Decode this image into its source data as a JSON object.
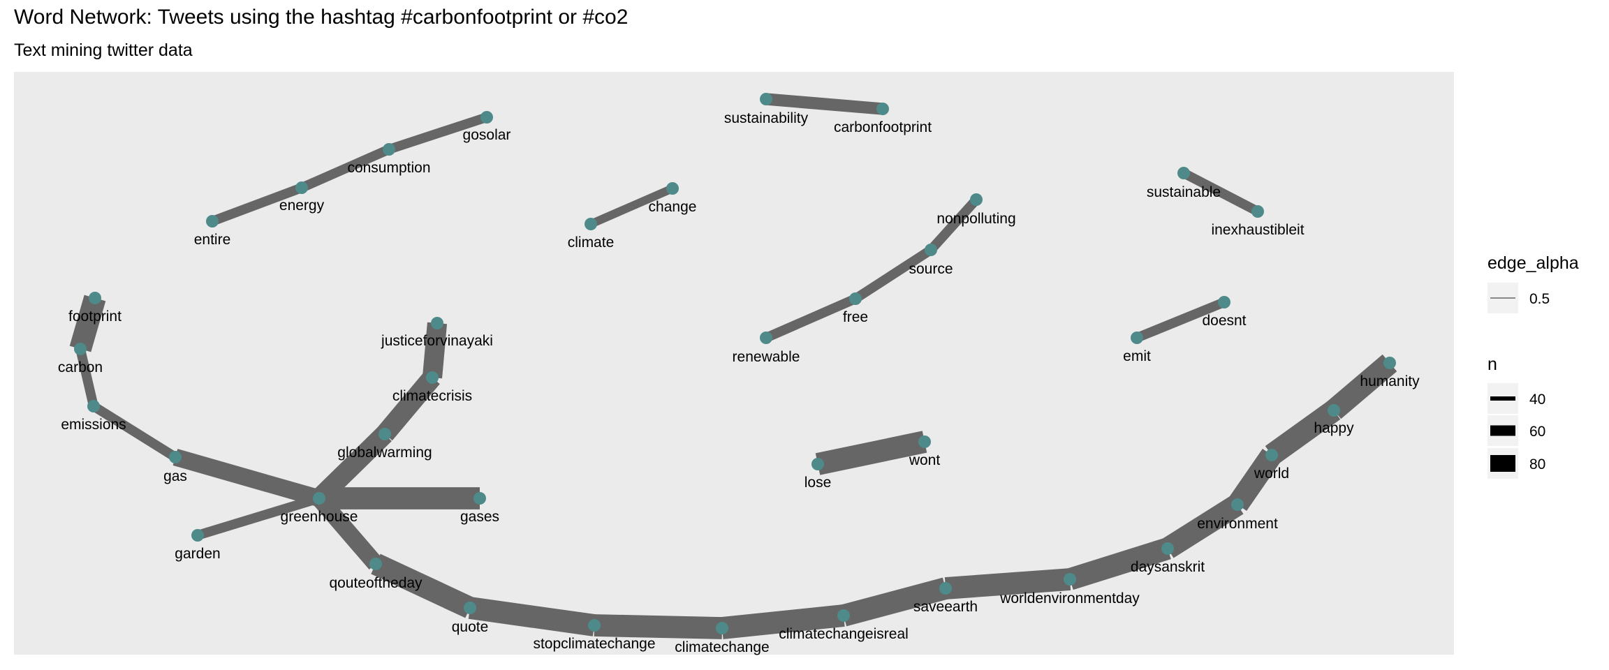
{
  "title": "Word Network: Tweets using the hashtag #carbonfootprint or #co2",
  "subtitle": "Text mining twitter data",
  "colors": {
    "panel_bg": "#ebebeb",
    "edge": "#666666",
    "node": "#4e8a8a"
  },
  "legend": {
    "alpha_title": "edge_alpha",
    "alpha_value": "0.5",
    "n_title": "n",
    "n_keys": [
      {
        "label": "40",
        "width": 40
      },
      {
        "label": "60",
        "width": 60
      },
      {
        "label": "80",
        "width": 80
      }
    ]
  },
  "network": {
    "nodes": [
      {
        "id": "sustainability",
        "label": "sustainability"
      },
      {
        "id": "carbonfootprint",
        "label": "carbonfootprint"
      },
      {
        "id": "gosolar",
        "label": "gosolar"
      },
      {
        "id": "consumption",
        "label": "consumption"
      },
      {
        "id": "energy",
        "label": "energy"
      },
      {
        "id": "entire",
        "label": "entire"
      },
      {
        "id": "change",
        "label": "change"
      },
      {
        "id": "climate",
        "label": "climate"
      },
      {
        "id": "nonpolluting",
        "label": "nonpolluting"
      },
      {
        "id": "source",
        "label": "source"
      },
      {
        "id": "free",
        "label": "free"
      },
      {
        "id": "renewable",
        "label": "renewable"
      },
      {
        "id": "sustainable",
        "label": "sustainable"
      },
      {
        "id": "inexhaustibleit",
        "label": "inexhaustibleit"
      },
      {
        "id": "doesnt",
        "label": "doesnt"
      },
      {
        "id": "emit",
        "label": "emit"
      },
      {
        "id": "footprint",
        "label": "footprint"
      },
      {
        "id": "carbon",
        "label": "carbon"
      },
      {
        "id": "emissions",
        "label": "emissions"
      },
      {
        "id": "gas",
        "label": "gas"
      },
      {
        "id": "justiceforvinayaki",
        "label": "justiceforvinayaki"
      },
      {
        "id": "climatecrisis",
        "label": "climatecrisis"
      },
      {
        "id": "globalwarming",
        "label": "globalwarming"
      },
      {
        "id": "greenhouse",
        "label": "greenhouse"
      },
      {
        "id": "gases",
        "label": "gases"
      },
      {
        "id": "garden",
        "label": "garden"
      },
      {
        "id": "qouteoftheday",
        "label": "qouteoftheday"
      },
      {
        "id": "quote",
        "label": "quote"
      },
      {
        "id": "stopclimatechange",
        "label": "stopclimatechange"
      },
      {
        "id": "climatechange",
        "label": "climatechange"
      },
      {
        "id": "climatechangeisreal",
        "label": "climatechangeisreal"
      },
      {
        "id": "saveearth",
        "label": "saveearth"
      },
      {
        "id": "worldenvironmentday",
        "label": "worldenvironmentday"
      },
      {
        "id": "daysanskrit",
        "label": "daysanskrit"
      },
      {
        "id": "environment",
        "label": "environment"
      },
      {
        "id": "world",
        "label": "world"
      },
      {
        "id": "happy",
        "label": "happy"
      },
      {
        "id": "humanity",
        "label": "humanity"
      },
      {
        "id": "lose",
        "label": "lose"
      },
      {
        "id": "wont",
        "label": "wont"
      }
    ],
    "edges": [
      {
        "from": "sustainability",
        "to": "carbonfootprint",
        "n": 40
      },
      {
        "from": "entire",
        "to": "energy",
        "n": 30
      },
      {
        "from": "energy",
        "to": "consumption",
        "n": 30
      },
      {
        "from": "consumption",
        "to": "gosolar",
        "n": 30
      },
      {
        "from": "climate",
        "to": "change",
        "n": 25
      },
      {
        "from": "renewable",
        "to": "free",
        "n": 30
      },
      {
        "from": "free",
        "to": "source",
        "n": 30
      },
      {
        "from": "source",
        "to": "nonpolluting",
        "n": 30
      },
      {
        "from": "sustainable",
        "to": "inexhaustibleit",
        "n": 30
      },
      {
        "from": "emit",
        "to": "doesnt",
        "n": 30
      },
      {
        "from": "carbon",
        "to": "footprint",
        "n": 80
      },
      {
        "from": "carbon",
        "to": "emissions",
        "n": 30
      },
      {
        "from": "emissions",
        "to": "gas",
        "n": 30
      },
      {
        "from": "gas",
        "to": "greenhouse",
        "n": 60
      },
      {
        "from": "justiceforvinayaki",
        "to": "climatecrisis",
        "n": 70
      },
      {
        "from": "climatecrisis",
        "to": "globalwarming",
        "n": 70
      },
      {
        "from": "globalwarming",
        "to": "greenhouse",
        "n": 70
      },
      {
        "from": "greenhouse",
        "to": "gases",
        "n": 80
      },
      {
        "from": "garden",
        "to": "greenhouse",
        "n": 30
      },
      {
        "from": "greenhouse",
        "to": "qouteoftheday",
        "n": 60
      },
      {
        "from": "qouteoftheday",
        "to": "quote",
        "n": 80
      },
      {
        "from": "quote",
        "to": "stopclimatechange",
        "n": 80
      },
      {
        "from": "stopclimatechange",
        "to": "climatechange",
        "n": 80
      },
      {
        "from": "climatechange",
        "to": "climatechangeisreal",
        "n": 80
      },
      {
        "from": "climatechangeisreal",
        "to": "saveearth",
        "n": 80
      },
      {
        "from": "saveearth",
        "to": "worldenvironmentday",
        "n": 80
      },
      {
        "from": "worldenvironmentday",
        "to": "daysanskrit",
        "n": 80
      },
      {
        "from": "daysanskrit",
        "to": "environment",
        "n": 80
      },
      {
        "from": "environment",
        "to": "world",
        "n": 80
      },
      {
        "from": "world",
        "to": "happy",
        "n": 80
      },
      {
        "from": "happy",
        "to": "humanity",
        "n": 80
      },
      {
        "from": "lose",
        "to": "wont",
        "n": 80
      }
    ]
  }
}
